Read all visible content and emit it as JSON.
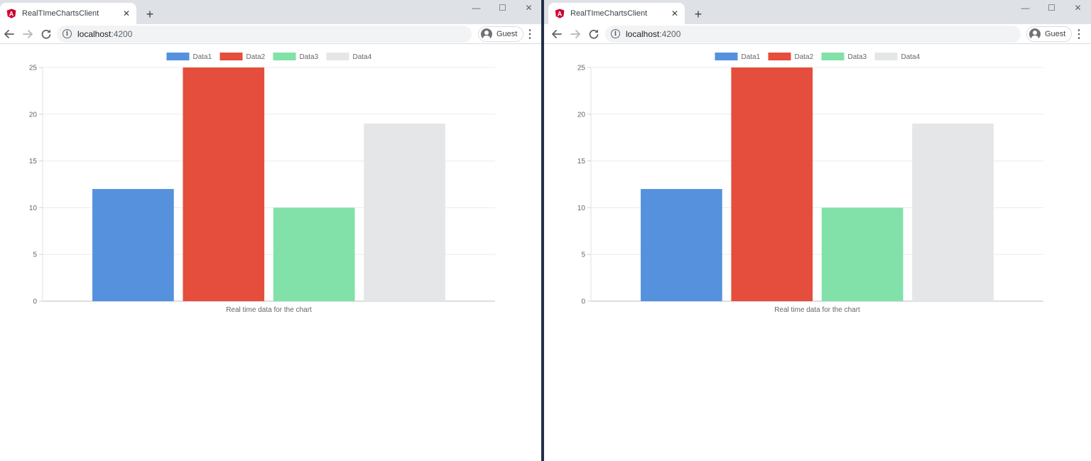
{
  "windows": [
    {
      "tab": {
        "title": "RealTImeChartsClient",
        "close_glyph": "✕"
      },
      "new_tab_glyph": "+",
      "window_controls": {
        "minimize": "—",
        "maximize": "☐",
        "close": "✕"
      },
      "address": {
        "host": "localhost",
        "port": ":4200"
      },
      "profile": {
        "label": "Guest"
      },
      "menu_glyph": "⋮"
    },
    {
      "tab": {
        "title": "RealTImeChartsClient",
        "close_glyph": "✕"
      },
      "new_tab_glyph": "+",
      "window_controls": {
        "minimize": "—",
        "maximize": "☐",
        "close": "✕"
      },
      "address": {
        "host": "localhost",
        "port": ":4200"
      },
      "profile": {
        "label": "Guest"
      },
      "menu_glyph": "⋮"
    }
  ],
  "icons": {
    "favicon": "angular-icon",
    "back": "arrow-left-icon",
    "forward": "arrow-right-icon",
    "reload": "reload-icon",
    "site_info": "info-icon",
    "profile": "avatar-icon",
    "menu": "kebab-menu-icon"
  },
  "colors": {
    "tabstrip": "#dee1e6",
    "angular_red": "#dd0031",
    "divider": "#1f2d44"
  },
  "chart_data": [
    {
      "type": "bar",
      "categories": [
        ""
      ],
      "series": [
        {
          "name": "Data1",
          "values": [
            12
          ],
          "color": "#5591dc"
        },
        {
          "name": "Data2",
          "values": [
            25
          ],
          "color": "#e54d3c"
        },
        {
          "name": "Data3",
          "values": [
            10
          ],
          "color": "#81e1a8"
        },
        {
          "name": "Data4",
          "values": [
            19
          ],
          "color": "#e5e6e8"
        }
      ],
      "xlabel": "Real time data for the chart",
      "ylabel": "",
      "ylim": [
        0,
        25
      ],
      "yticks": [
        0,
        5,
        10,
        15,
        20,
        25
      ],
      "legend": "top-center",
      "grid": true
    },
    {
      "type": "bar",
      "categories": [
        ""
      ],
      "series": [
        {
          "name": "Data1",
          "values": [
            12
          ],
          "color": "#5591dc"
        },
        {
          "name": "Data2",
          "values": [
            25
          ],
          "color": "#e54d3c"
        },
        {
          "name": "Data3",
          "values": [
            10
          ],
          "color": "#81e1a8"
        },
        {
          "name": "Data4",
          "values": [
            19
          ],
          "color": "#e5e6e8"
        }
      ],
      "xlabel": "Real time data for the chart",
      "ylabel": "",
      "ylim": [
        0,
        25
      ],
      "yticks": [
        0,
        5,
        10,
        15,
        20,
        25
      ],
      "legend": "top-center",
      "grid": true
    }
  ]
}
